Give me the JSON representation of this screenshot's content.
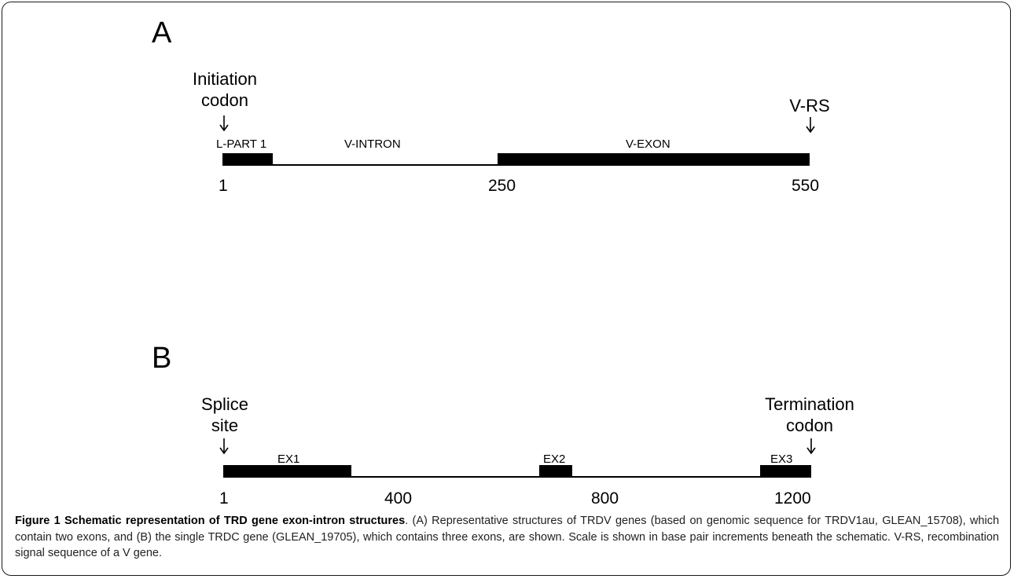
{
  "panel_a": {
    "letter": "A",
    "left_callout": [
      "Initiation",
      "codon"
    ],
    "right_callout": [
      "V-RS"
    ],
    "segments": [
      "L-PART 1",
      "V-INTRON",
      "V-EXON"
    ],
    "scale": [
      "1",
      "250",
      "550"
    ]
  },
  "panel_b": {
    "letter": "B",
    "left_callout": [
      "Splice",
      "site"
    ],
    "right_callout": [
      "Termination",
      "codon"
    ],
    "segments": [
      "EX1",
      "EX2",
      "EX3"
    ],
    "scale": [
      "1",
      "400",
      "800",
      "1200"
    ]
  },
  "caption": {
    "title": "Figure 1 Schematic representation of TRD gene exon-intron structures",
    "text": ". (A) Representative structures of TRDV genes (based on genomic sequence for TRDV1au, GLEAN_15708), which contain two exons, and (B) the single TRDC gene (GLEAN_19705), which contains three exons, are shown. Scale is shown in base pair increments beneath the schematic. V-RS, recombination signal sequence of a V gene."
  }
}
